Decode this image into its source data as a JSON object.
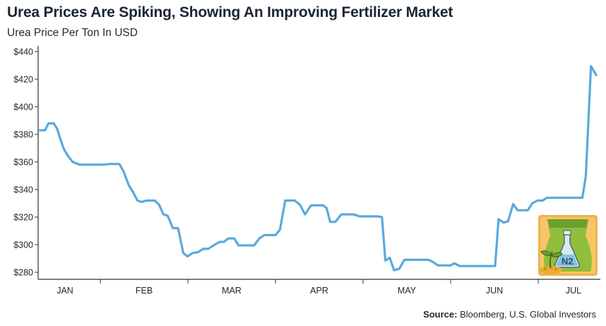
{
  "header": {
    "title": "Urea Prices Are Spiking, Showing An Improving Fertilizer Market",
    "subtitle": "Urea Price Per Ton In USD"
  },
  "footer": {
    "source_label": "Source:",
    "source_text": " Bloomberg, U.S. Global Investors"
  },
  "colors": {
    "line": "#5aa9dc",
    "axis": "#333333",
    "icon_bag": "#8fbf3a",
    "icon_frame": "#e8a33a"
  },
  "icon": {
    "name": "fertilizer-bag-icon",
    "label": "N2"
  },
  "chart_data": {
    "type": "line",
    "title": "Urea Prices Are Spiking, Showing An Improving Fertilizer Market",
    "subtitle": "Urea Price Per Ton In USD",
    "ylim": [
      277,
      440
    ],
    "yticks": [
      440,
      420,
      400,
      380,
      360,
      340,
      320,
      300,
      280
    ],
    "ytick_labels": [
      "$440",
      "$420",
      "$400",
      "$380",
      "$360",
      "$340",
      "$320",
      "$300",
      "$280"
    ],
    "xlim": [
      0,
      7
    ],
    "months": [
      "JAN",
      "FEB",
      "MAR",
      "APR",
      "MAY",
      "JUN",
      "JUL"
    ],
    "grid": false,
    "series": [
      {
        "points": [
          [
            0.0,
            383
          ],
          [
            0.05,
            383
          ],
          [
            0.08,
            383
          ],
          [
            0.12,
            388
          ],
          [
            0.18,
            388
          ],
          [
            0.22,
            384
          ],
          [
            0.26,
            376
          ],
          [
            0.3,
            369
          ],
          [
            0.35,
            364
          ],
          [
            0.4,
            360
          ],
          [
            0.48,
            358
          ],
          [
            0.56,
            358
          ],
          [
            0.64,
            358
          ],
          [
            0.72,
            358
          ],
          [
            0.76,
            358
          ],
          [
            0.82,
            358.5
          ],
          [
            0.9,
            358.5
          ],
          [
            0.94,
            358.5
          ],
          [
            0.99,
            353
          ],
          [
            1.05,
            343
          ],
          [
            1.1,
            338
          ],
          [
            1.15,
            332
          ],
          [
            1.2,
            331
          ],
          [
            1.25,
            332
          ],
          [
            1.35,
            332
          ],
          [
            1.4,
            329
          ],
          [
            1.45,
            322
          ],
          [
            1.5,
            321
          ],
          [
            1.56,
            312
          ],
          [
            1.62,
            312
          ],
          [
            1.68,
            294
          ],
          [
            1.73,
            291.5
          ],
          [
            1.79,
            294
          ],
          [
            1.85,
            294.5
          ],
          [
            1.91,
            297
          ],
          [
            1.97,
            297
          ],
          [
            2.03,
            299.5
          ],
          [
            2.1,
            302
          ],
          [
            2.15,
            302
          ],
          [
            2.2,
            304.5
          ],
          [
            2.27,
            304.5
          ],
          [
            2.32,
            299.5
          ],
          [
            2.38,
            299.5
          ],
          [
            2.45,
            299.5
          ],
          [
            2.5,
            299.5
          ],
          [
            2.56,
            304.5
          ],
          [
            2.62,
            307
          ],
          [
            2.7,
            307
          ],
          [
            2.75,
            307
          ],
          [
            2.8,
            311
          ],
          [
            2.86,
            332
          ],
          [
            2.93,
            332
          ],
          [
            2.97,
            332
          ],
          [
            3.03,
            329
          ],
          [
            3.09,
            322
          ],
          [
            3.16,
            328.5
          ],
          [
            3.25,
            328.5
          ],
          [
            3.3,
            328.5
          ],
          [
            3.34,
            326.5
          ],
          [
            3.38,
            316.5
          ],
          [
            3.44,
            316.5
          ],
          [
            3.51,
            322
          ],
          [
            3.6,
            322
          ],
          [
            3.65,
            322
          ],
          [
            3.72,
            320.5
          ],
          [
            3.8,
            320.5
          ],
          [
            3.86,
            320.5
          ],
          [
            3.93,
            320.5
          ],
          [
            3.98,
            320
          ],
          [
            4.02,
            288.5
          ],
          [
            4.07,
            290.5
          ],
          [
            4.12,
            281.5
          ],
          [
            4.18,
            282.5
          ],
          [
            4.24,
            289
          ],
          [
            4.33,
            289
          ],
          [
            4.43,
            289
          ],
          [
            4.52,
            289
          ],
          [
            4.57,
            287.5
          ],
          [
            4.63,
            285
          ],
          [
            4.71,
            285
          ],
          [
            4.77,
            285
          ],
          [
            4.82,
            286.5
          ],
          [
            4.88,
            284.5
          ],
          [
            5.0,
            284.5
          ],
          [
            5.2,
            284.5
          ],
          [
            5.29,
            284.5
          ],
          [
            5.33,
            318.5
          ],
          [
            5.39,
            316
          ],
          [
            5.44,
            317
          ],
          [
            5.5,
            329.5
          ],
          [
            5.55,
            325
          ],
          [
            5.62,
            325
          ],
          [
            5.67,
            325
          ],
          [
            5.72,
            330
          ],
          [
            5.78,
            332
          ],
          [
            5.84,
            332
          ],
          [
            5.89,
            334
          ],
          [
            6.0,
            334
          ],
          [
            6.15,
            334
          ],
          [
            6.24,
            334
          ],
          [
            6.3,
            334
          ],
          [
            6.34,
            349.5
          ],
          [
            6.4,
            429.5
          ],
          [
            6.46,
            423
          ]
        ]
      }
    ],
    "source": "Source: Bloomberg, U.S. Global Investors"
  }
}
